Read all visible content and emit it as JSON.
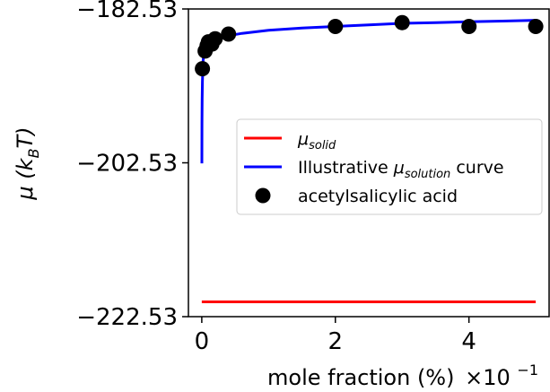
{
  "chart_data": {
    "type": "scatter",
    "xlabel": "mole fraction (%)",
    "x_multiplier": "×10",
    "x_multiplier_exp": "−1",
    "ylabel_prefix": "μ (k",
    "ylabel_sub": "B",
    "ylabel_suffix": "T)",
    "xlim": [
      -0.2,
      5.2
    ],
    "ylim": [
      -222.53,
      -182.53
    ],
    "x_ticks": [
      0,
      2,
      4
    ],
    "x_tick_labels": [
      "0",
      "2",
      "4"
    ],
    "y_ticks": [
      -182.53,
      -202.53,
      -222.53
    ],
    "y_tick_labels": [
      "−182.53",
      "−202.53",
      "−222.53"
    ],
    "legend_position": "center-right",
    "series": [
      {
        "kind": "line",
        "color": "#ff0000",
        "legend_main": "μ",
        "legend_sub": "solid",
        "legend_suffix": "",
        "x": [
          0,
          5
        ],
        "y": [
          -220.6,
          -220.6
        ]
      },
      {
        "kind": "curve",
        "color": "#0000ff",
        "legend_main": "Illustrative μ",
        "legend_sub": "solution",
        "legend_suffix": " curve",
        "x": [
          0.001,
          0.003,
          0.006,
          0.01,
          0.02,
          0.04,
          0.07,
          0.1,
          0.15,
          0.2,
          0.3,
          0.4,
          0.6,
          0.8,
          1.0,
          1.5,
          2.0,
          2.5,
          3.0,
          3.5,
          4.0,
          4.5,
          5.0
        ],
        "y": [
          -202.6,
          -197.4,
          -194.3,
          -192.0,
          -189.2,
          -187.8,
          -187.3,
          -187.1,
          -186.8,
          -186.6,
          -186.3,
          -186.0,
          -185.7,
          -185.5,
          -185.3,
          -185.0,
          -184.8,
          -184.6,
          -184.4,
          -184.3,
          -184.2,
          -184.1,
          -184.0
        ]
      },
      {
        "kind": "scatter",
        "color": "#000000",
        "legend_main": "acetylsalicylic acid",
        "legend_sub": "",
        "legend_suffix": "",
        "x": [
          0.01,
          0.05,
          0.08,
          0.1,
          0.15,
          0.2,
          0.4,
          2.0,
          3.0,
          4.0,
          5.0
        ],
        "y": [
          -190.3,
          -188.0,
          -187.3,
          -186.8,
          -187.1,
          -186.4,
          -185.8,
          -184.8,
          -184.3,
          -184.8,
          -184.8
        ]
      }
    ]
  }
}
